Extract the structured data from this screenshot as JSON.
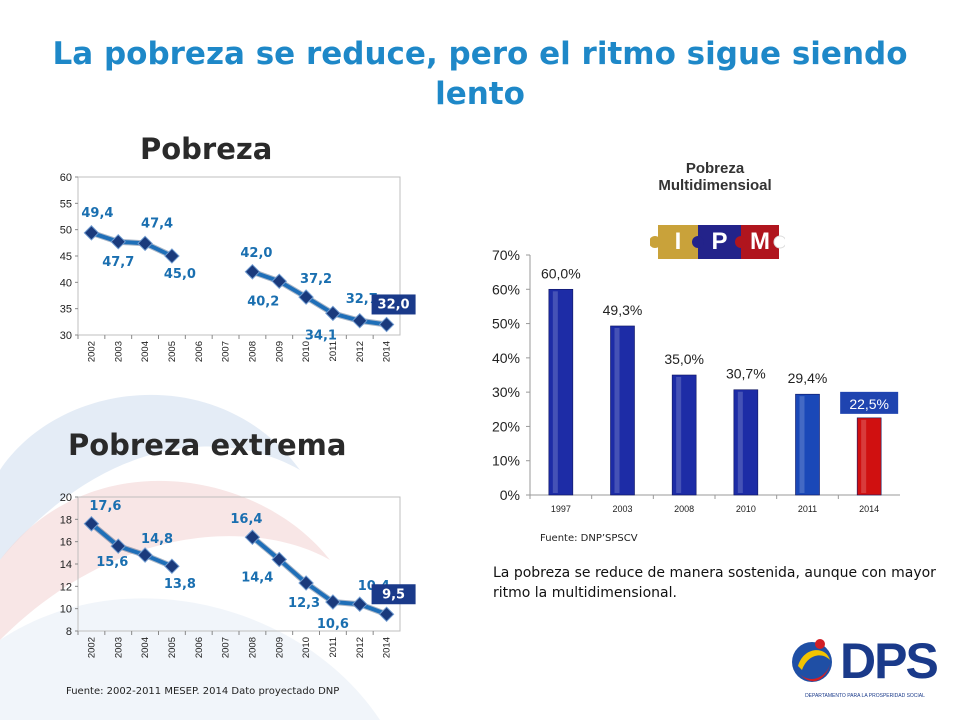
{
  "title": "La pobreza se reduce, pero el ritmo sigue siendo lento",
  "panels": {
    "pobreza_title": "Pobreza",
    "extrema_title": "Pobreza extrema",
    "mdi_title": "Pobreza Multidimensioal"
  },
  "ipm_letters": [
    "I",
    "P",
    "M"
  ],
  "colors": {
    "title": "#1e88c8",
    "line": "#1f6fb8",
    "marker": "#1a3a7c",
    "bar_blue": "#1d2ca6",
    "bar_mid": "#1a48b8",
    "bar_red": "#d01010",
    "label": "#1a6fb0",
    "highlight_box": "#1a3a8a"
  },
  "chart_data": [
    {
      "type": "line",
      "title": "Pobreza",
      "x": [
        "2002",
        "2003",
        "2004",
        "2005",
        "2006",
        "2007",
        "2008",
        "2009",
        "2010",
        "2011",
        "2012",
        "2014"
      ],
      "series": [
        {
          "values": [
            49.4,
            47.7,
            47.4,
            45.0,
            null,
            null,
            42.0,
            40.2,
            37.2,
            34.1,
            32.7,
            32.0
          ]
        }
      ],
      "data_labels": [
        "49,4",
        "47,7",
        "47,4",
        "45,0",
        "",
        "",
        "42,0",
        "40,2",
        "37,2",
        "34,1",
        "32,7",
        "32,0"
      ],
      "yticks": [
        "30",
        "35",
        "40",
        "45",
        "50",
        "55",
        "60"
      ],
      "ylim": [
        30,
        60
      ],
      "highlight_last": true
    },
    {
      "type": "line",
      "title": "Pobreza extrema",
      "x": [
        "2002",
        "2003",
        "2004",
        "2005",
        "2006",
        "2007",
        "2008",
        "2009",
        "2010",
        "2011",
        "2012",
        "2014"
      ],
      "series": [
        {
          "values": [
            17.6,
            15.6,
            14.8,
            13.8,
            null,
            null,
            16.4,
            14.4,
            12.3,
            10.6,
            10.4,
            9.5
          ]
        }
      ],
      "data_labels": [
        "17,6",
        "15,6",
        "14,8",
        "13,8",
        "",
        "",
        "16,4",
        "14,4",
        "12,3",
        "10,6",
        "10,4",
        "9,5"
      ],
      "yticks": [
        "8",
        "10",
        "12",
        "14",
        "16",
        "18",
        "20"
      ],
      "ylim": [
        8,
        20
      ],
      "highlight_last": true
    },
    {
      "type": "bar",
      "title": "Pobreza Multidimensioal",
      "categories": [
        "1997",
        "2003",
        "2008",
        "2010",
        "2011",
        "2014"
      ],
      "values": [
        60.0,
        49.3,
        35.0,
        30.7,
        29.4,
        22.5
      ],
      "data_labels": [
        "60,0%",
        "49,3%",
        "35,0%",
        "30,7%",
        "29,4%",
        "22,5%"
      ],
      "yticks": [
        "0%",
        "10%",
        "20%",
        "30%",
        "40%",
        "50%",
        "60%",
        "70%"
      ],
      "ylim": [
        0,
        70
      ],
      "highlight_last": true
    }
  ],
  "sources": {
    "dnp": "Fuente: DNP’SPSCV",
    "mesep": "Fuente: 2002-2011 MESEP. 2014 Dato proyectado DNP"
  },
  "note": "La pobreza se reduce de manera sostenida, aunque con mayor ritmo la multidimensional.",
  "logo": {
    "text": "DPS",
    "subtitle": "DEPARTAMENTO PARA LA PROSPERIDAD SOCIAL"
  }
}
